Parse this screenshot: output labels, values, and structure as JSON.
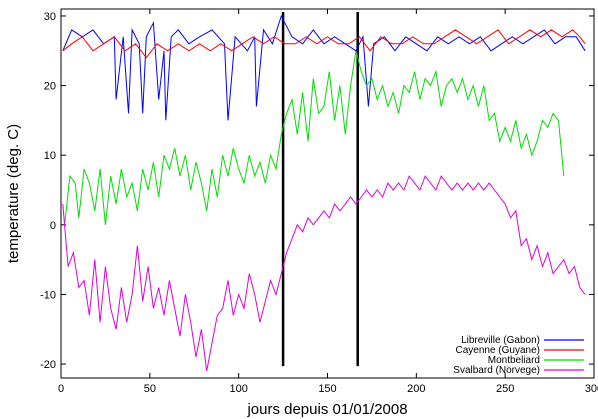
{
  "chart_data": {
    "type": "line",
    "title": "",
    "xlabel": "jours depuis 01/01/2008",
    "ylabel": "temperature (deg. C)",
    "xlim": [
      0,
      300
    ],
    "ylim": [
      -22,
      31
    ],
    "xticks": [
      0,
      50,
      100,
      150,
      200,
      250,
      300
    ],
    "yticks": [
      -20,
      -10,
      0,
      10,
      20,
      30
    ],
    "x_tick_labels": [
      "0",
      "50",
      "100",
      "150",
      "200",
      "250",
      "300"
    ],
    "y_tick_labels": [
      "-20",
      "-10",
      "0",
      "10",
      "20",
      "30"
    ],
    "grid": false,
    "legend_position": "bottom-right",
    "vertical_markers": [
      {
        "x": 125,
        "y_range": [
          -20,
          30
        ],
        "color": "#000000"
      },
      {
        "x": 167,
        "y_range": [
          -20,
          30
        ],
        "color": "#000000"
      }
    ],
    "series": [
      {
        "name": "Libreville (Gabon)",
        "color": "#0000ff",
        "points": [
          [
            1,
            25
          ],
          [
            6,
            28
          ],
          [
            12,
            27
          ],
          [
            18,
            28
          ],
          [
            24,
            26
          ],
          [
            30,
            27
          ],
          [
            31,
            18
          ],
          [
            35,
            27
          ],
          [
            38,
            16
          ],
          [
            40,
            28
          ],
          [
            44,
            26
          ],
          [
            46,
            16
          ],
          [
            48,
            27
          ],
          [
            52,
            29
          ],
          [
            55,
            18
          ],
          [
            58,
            25
          ],
          [
            59,
            15
          ],
          [
            62,
            27
          ],
          [
            66,
            28
          ],
          [
            72,
            26
          ],
          [
            78,
            27
          ],
          [
            85,
            28
          ],
          [
            92,
            26
          ],
          [
            94,
            15
          ],
          [
            98,
            27
          ],
          [
            105,
            25
          ],
          [
            109,
            27
          ],
          [
            110,
            17
          ],
          [
            114,
            28
          ],
          [
            119,
            26
          ],
          [
            124,
            30
          ],
          [
            130,
            27
          ],
          [
            136,
            26
          ],
          [
            142,
            28
          ],
          [
            148,
            26
          ],
          [
            154,
            27
          ],
          [
            160,
            26
          ],
          [
            166,
            25
          ],
          [
            170,
            27
          ],
          [
            173,
            17
          ],
          [
            176,
            26
          ],
          [
            182,
            27
          ],
          [
            188,
            25
          ],
          [
            194,
            27
          ],
          [
            200,
            26
          ],
          [
            206,
            25
          ],
          [
            212,
            27
          ],
          [
            218,
            26
          ],
          [
            224,
            27
          ],
          [
            230,
            26
          ],
          [
            236,
            27
          ],
          [
            242,
            25
          ],
          [
            248,
            26
          ],
          [
            254,
            27
          ],
          [
            260,
            26
          ],
          [
            266,
            27
          ],
          [
            272,
            28
          ],
          [
            278,
            26
          ],
          [
            284,
            27
          ],
          [
            290,
            27
          ],
          [
            295,
            25
          ]
        ]
      },
      {
        "name": "Cayenne (Guyane)",
        "color": "#ff0000",
        "points": [
          [
            1,
            25
          ],
          [
            6,
            26
          ],
          [
            12,
            27
          ],
          [
            18,
            25
          ],
          [
            24,
            26
          ],
          [
            30,
            27
          ],
          [
            36,
            25
          ],
          [
            42,
            26
          ],
          [
            48,
            24
          ],
          [
            54,
            26
          ],
          [
            60,
            25
          ],
          [
            66,
            26
          ],
          [
            72,
            25
          ],
          [
            78,
            26
          ],
          [
            84,
            25
          ],
          [
            90,
            26
          ],
          [
            96,
            25
          ],
          [
            102,
            26
          ],
          [
            108,
            27
          ],
          [
            114,
            26
          ],
          [
            120,
            27
          ],
          [
            126,
            26
          ],
          [
            132,
            26
          ],
          [
            138,
            27
          ],
          [
            144,
            26
          ],
          [
            150,
            27
          ],
          [
            156,
            26
          ],
          [
            162,
            26
          ],
          [
            168,
            27
          ],
          [
            174,
            25
          ],
          [
            180,
            27
          ],
          [
            186,
            26
          ],
          [
            192,
            26
          ],
          [
            198,
            27
          ],
          [
            204,
            26
          ],
          [
            210,
            26
          ],
          [
            216,
            27
          ],
          [
            222,
            28
          ],
          [
            228,
            27
          ],
          [
            234,
            26
          ],
          [
            240,
            27
          ],
          [
            246,
            28
          ],
          [
            252,
            26
          ],
          [
            258,
            27
          ],
          [
            264,
            28
          ],
          [
            270,
            27
          ],
          [
            276,
            28
          ],
          [
            282,
            27
          ],
          [
            288,
            28
          ],
          [
            292,
            27
          ],
          [
            295,
            26
          ]
        ]
      },
      {
        "name": "Montbeliard",
        "color": "#00dd00",
        "points": [
          [
            2,
            0
          ],
          [
            5,
            7
          ],
          [
            8,
            6
          ],
          [
            10,
            1
          ],
          [
            13,
            8
          ],
          [
            16,
            6
          ],
          [
            19,
            2
          ],
          [
            22,
            8
          ],
          [
            25,
            0
          ],
          [
            28,
            7
          ],
          [
            31,
            3
          ],
          [
            34,
            8
          ],
          [
            37,
            4
          ],
          [
            40,
            6
          ],
          [
            43,
            2
          ],
          [
            46,
            8
          ],
          [
            49,
            5
          ],
          [
            52,
            9
          ],
          [
            55,
            4
          ],
          [
            58,
            10
          ],
          [
            61,
            8
          ],
          [
            64,
            11
          ],
          [
            67,
            7
          ],
          [
            70,
            10
          ],
          [
            73,
            5
          ],
          [
            76,
            9
          ],
          [
            79,
            6
          ],
          [
            82,
            2
          ],
          [
            85,
            8
          ],
          [
            88,
            4
          ],
          [
            91,
            10
          ],
          [
            94,
            7
          ],
          [
            97,
            11
          ],
          [
            100,
            8
          ],
          [
            103,
            6
          ],
          [
            106,
            10
          ],
          [
            109,
            7
          ],
          [
            112,
            9
          ],
          [
            115,
            6
          ],
          [
            118,
            10
          ],
          [
            121,
            8
          ],
          [
            124,
            13
          ],
          [
            127,
            16
          ],
          [
            130,
            18
          ],
          [
            133,
            13
          ],
          [
            136,
            19
          ],
          [
            139,
            12
          ],
          [
            142,
            21
          ],
          [
            145,
            16
          ],
          [
            148,
            17
          ],
          [
            151,
            22
          ],
          [
            154,
            15
          ],
          [
            157,
            20
          ],
          [
            160,
            13
          ],
          [
            163,
            20
          ],
          [
            166,
            25
          ],
          [
            169,
            22
          ],
          [
            172,
            20
          ],
          [
            175,
            21
          ],
          [
            178,
            18
          ],
          [
            181,
            20
          ],
          [
            184,
            17
          ],
          [
            187,
            19
          ],
          [
            190,
            16
          ],
          [
            193,
            20
          ],
          [
            196,
            19
          ],
          [
            199,
            22
          ],
          [
            202,
            18
          ],
          [
            205,
            21
          ],
          [
            208,
            20
          ],
          [
            211,
            22
          ],
          [
            214,
            17
          ],
          [
            217,
            20
          ],
          [
            220,
            21
          ],
          [
            223,
            19
          ],
          [
            226,
            21
          ],
          [
            229,
            18
          ],
          [
            232,
            20
          ],
          [
            235,
            17
          ],
          [
            238,
            20
          ],
          [
            241,
            15
          ],
          [
            244,
            16
          ],
          [
            247,
            12
          ],
          [
            250,
            14
          ],
          [
            253,
            12
          ],
          [
            256,
            15
          ],
          [
            259,
            11
          ],
          [
            262,
            13
          ],
          [
            265,
            10
          ],
          [
            268,
            12
          ],
          [
            271,
            15
          ],
          [
            274,
            14
          ],
          [
            277,
            16
          ],
          [
            280,
            15
          ],
          [
            283,
            7
          ]
        ]
      },
      {
        "name": "Svalbard (Norvege)",
        "color": "#dd00dd",
        "points": [
          [
            1,
            3
          ],
          [
            4,
            -6
          ],
          [
            7,
            -4
          ],
          [
            10,
            -9
          ],
          [
            13,
            -8
          ],
          [
            16,
            -13
          ],
          [
            19,
            -5
          ],
          [
            22,
            -14
          ],
          [
            25,
            -6
          ],
          [
            28,
            -12
          ],
          [
            31,
            -15
          ],
          [
            34,
            -9
          ],
          [
            37,
            -14
          ],
          [
            40,
            -10
          ],
          [
            43,
            -3
          ],
          [
            46,
            -11
          ],
          [
            49,
            -6
          ],
          [
            52,
            -12
          ],
          [
            55,
            -9
          ],
          [
            58,
            -13
          ],
          [
            61,
            -8
          ],
          [
            64,
            -12
          ],
          [
            67,
            -16
          ],
          [
            70,
            -10
          ],
          [
            73,
            -14
          ],
          [
            76,
            -19
          ],
          [
            79,
            -15
          ],
          [
            82,
            -21
          ],
          [
            85,
            -17
          ],
          [
            88,
            -13
          ],
          [
            91,
            -12
          ],
          [
            94,
            -8
          ],
          [
            97,
            -13
          ],
          [
            100,
            -10
          ],
          [
            103,
            -12
          ],
          [
            106,
            -7
          ],
          [
            109,
            -10
          ],
          [
            112,
            -14
          ],
          [
            115,
            -11
          ],
          [
            118,
            -8
          ],
          [
            121,
            -10
          ],
          [
            124,
            -7
          ],
          [
            127,
            -4
          ],
          [
            130,
            -2
          ],
          [
            133,
            0
          ],
          [
            136,
            -1
          ],
          [
            139,
            1
          ],
          [
            142,
            0
          ],
          [
            145,
            1
          ],
          [
            148,
            2
          ],
          [
            151,
            1
          ],
          [
            154,
            3
          ],
          [
            157,
            2
          ],
          [
            160,
            3
          ],
          [
            163,
            4
          ],
          [
            166,
            3
          ],
          [
            169,
            4
          ],
          [
            172,
            5
          ],
          [
            175,
            4
          ],
          [
            178,
            5
          ],
          [
            181,
            4
          ],
          [
            184,
            6
          ],
          [
            187,
            5
          ],
          [
            190,
            6
          ],
          [
            193,
            5
          ],
          [
            196,
            7
          ],
          [
            199,
            6
          ],
          [
            202,
            5
          ],
          [
            205,
            7
          ],
          [
            208,
            6
          ],
          [
            211,
            5
          ],
          [
            214,
            7
          ],
          [
            217,
            6
          ],
          [
            220,
            5
          ],
          [
            223,
            6
          ],
          [
            226,
            5
          ],
          [
            229,
            6
          ],
          [
            232,
            5
          ],
          [
            235,
            6
          ],
          [
            238,
            5
          ],
          [
            241,
            6
          ],
          [
            244,
            5
          ],
          [
            247,
            4
          ],
          [
            250,
            3
          ],
          [
            253,
            1
          ],
          [
            256,
            2
          ],
          [
            259,
            -3
          ],
          [
            262,
            -2
          ],
          [
            265,
            -5
          ],
          [
            268,
            -3
          ],
          [
            271,
            -6
          ],
          [
            274,
            -4
          ],
          [
            277,
            -7
          ],
          [
            280,
            -6
          ],
          [
            283,
            -5
          ],
          [
            286,
            -7
          ],
          [
            289,
            -6
          ],
          [
            292,
            -9
          ],
          [
            295,
            -10
          ]
        ]
      }
    ]
  }
}
